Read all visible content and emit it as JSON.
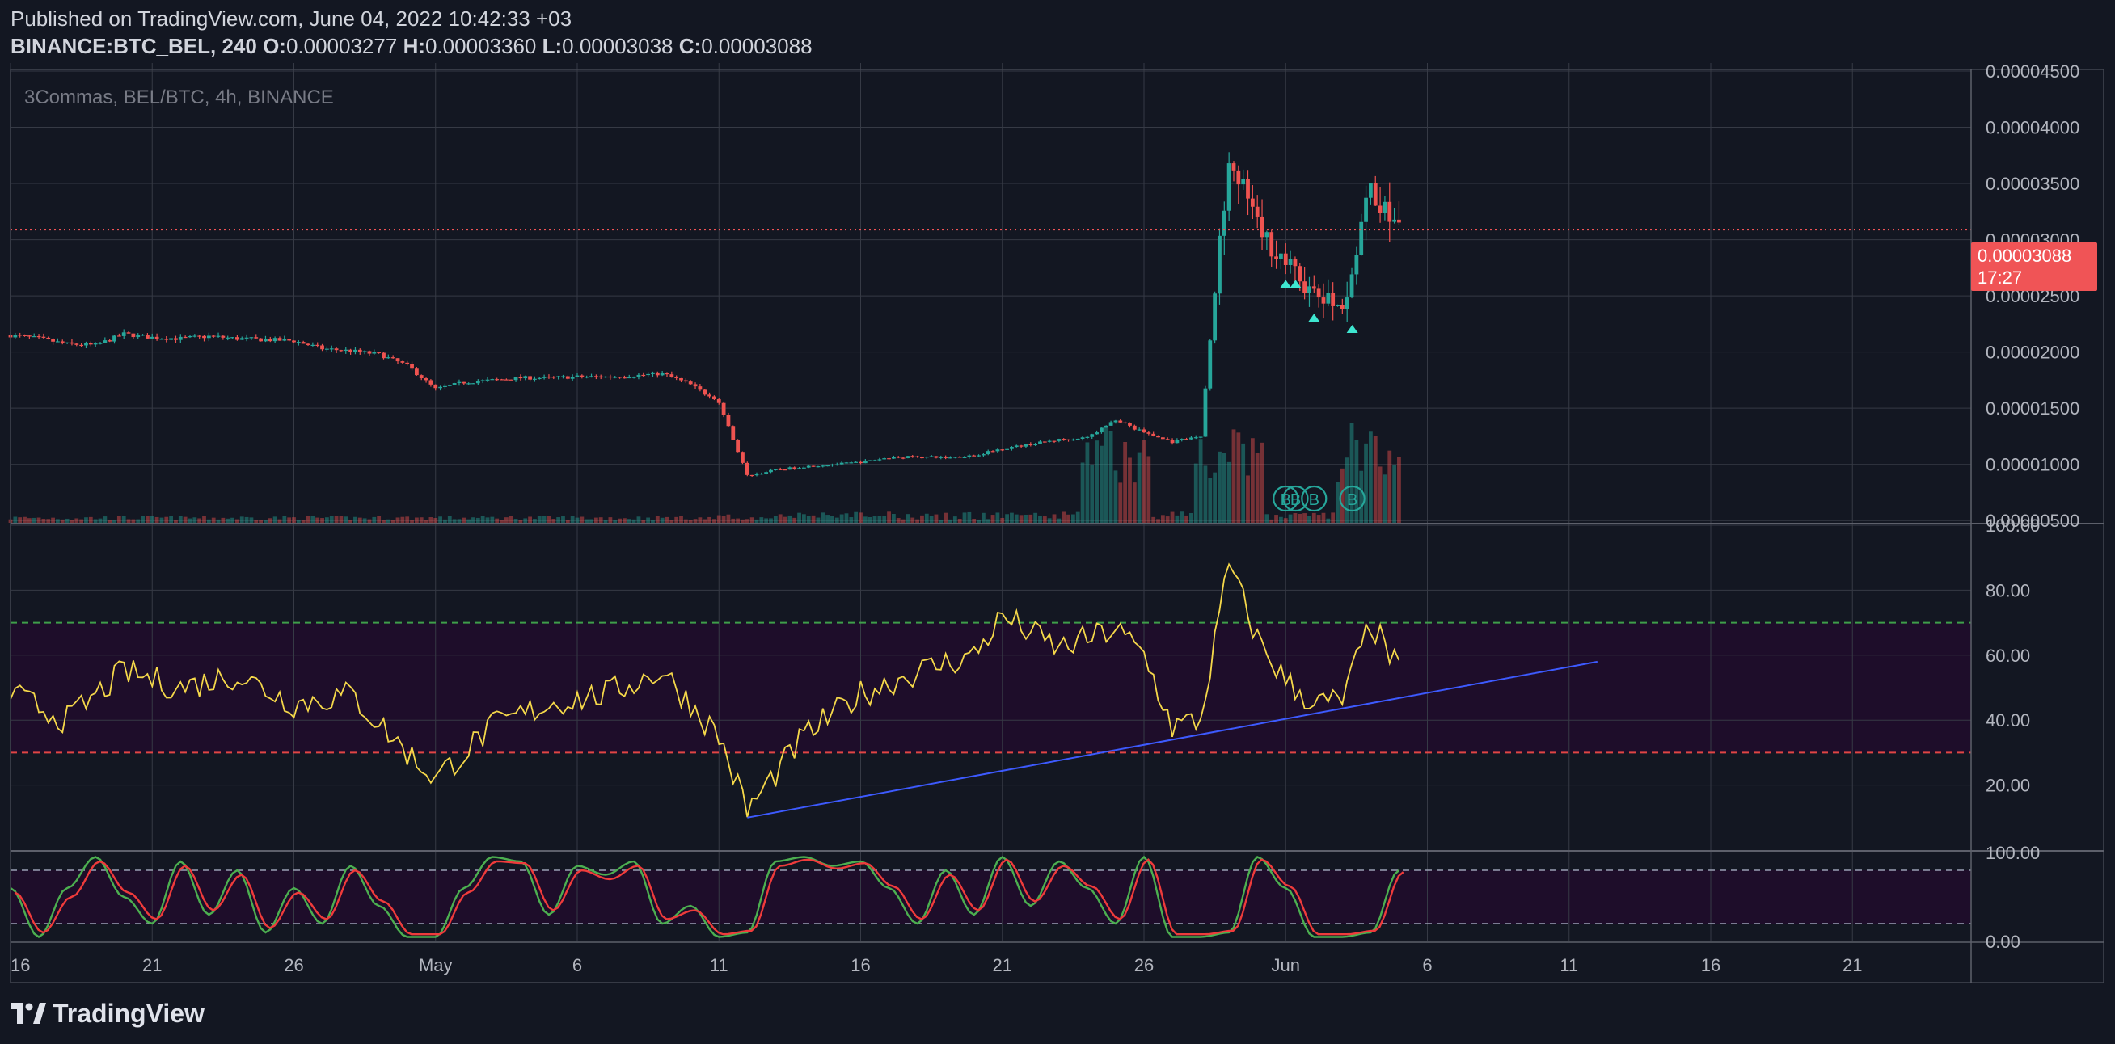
{
  "header": {
    "published": "Published on TradingView.com, June 04, 2022 10:42:33 +03",
    "symbol": "BINANCE:BTC_BEL, 240",
    "o_label": "O:",
    "o_value": "0.00003277",
    "h_label": "H:",
    "h_value": "0.00003360",
    "l_label": "L:",
    "l_value": "0.00003038",
    "c_label": "C:",
    "c_value": "0.00003088"
  },
  "watermark": "3Commas, BEL/BTC, 4h, BINANCE",
  "last_price": {
    "value": "0.00003088",
    "countdown": "17:27"
  },
  "logo_text": "TradingView",
  "colors": {
    "background": "#131722",
    "grid": "#363a45",
    "up": "#26a69a",
    "down": "#ef5350",
    "rsi": "#f5d84a",
    "trend": "#3d5afe",
    "stoch_k": "#4caf50",
    "stoch_d": "#ef3b3b",
    "band": "#1e0d2a",
    "ob": "#3f9e4a",
    "os": "#e04545"
  },
  "chart_data": [
    {
      "type": "candlestick",
      "title": "BEL/BTC 4h",
      "y_axis": {
        "ticks": [
          "0.00004500",
          "0.00004000",
          "0.00003500",
          "0.00003000",
          "0.00002500",
          "0.00002000",
          "0.00001500",
          "0.00001000",
          "0.00000500"
        ],
        "ylim": [
          4.8e-06,
          4.5e-05
        ]
      },
      "x_axis": {
        "ticks": [
          "16",
          "21",
          "26",
          "May",
          "6",
          "11",
          "16",
          "21",
          "26",
          "Jun",
          "6",
          "11",
          "16",
          "21"
        ]
      },
      "close_path": [
        [
          "2022-04-16",
          2.15e-05
        ],
        [
          "2022-04-17",
          2.12e-05
        ],
        [
          "2022-04-18",
          2.07e-05
        ],
        [
          "2022-04-19",
          2.06e-05
        ],
        [
          "2022-04-20",
          2.16e-05
        ],
        [
          "2022-04-21",
          2.13e-05
        ],
        [
          "2022-04-22",
          2.12e-05
        ],
        [
          "2022-04-23",
          2.14e-05
        ],
        [
          "2022-04-24",
          2.12e-05
        ],
        [
          "2022-04-25",
          2.11e-05
        ],
        [
          "2022-04-26",
          2.1e-05
        ],
        [
          "2022-04-27",
          2.03e-05
        ],
        [
          "2022-04-28",
          2.01e-05
        ],
        [
          "2022-04-29",
          1.98e-05
        ],
        [
          "2022-04-30",
          1.88e-05
        ],
        [
          "2022-05-01",
          1.67e-05
        ],
        [
          "2022-05-02",
          1.73e-05
        ],
        [
          "2022-05-03",
          1.75e-05
        ],
        [
          "2022-05-04",
          1.77e-05
        ],
        [
          "2022-05-05",
          1.77e-05
        ],
        [
          "2022-05-06",
          1.78e-05
        ],
        [
          "2022-05-07",
          1.78e-05
        ],
        [
          "2022-05-08",
          1.79e-05
        ],
        [
          "2022-05-09",
          1.81e-05
        ],
        [
          "2022-05-10",
          1.71e-05
        ],
        [
          "2022-05-11",
          1.55e-05
        ],
        [
          "2022-05-12",
          9e-06
        ],
        [
          "2022-05-13",
          9.5e-06
        ],
        [
          "2022-05-14",
          9.8e-06
        ],
        [
          "2022-05-15",
          1e-05
        ],
        [
          "2022-05-16",
          1.02e-05
        ],
        [
          "2022-05-17",
          1.06e-05
        ],
        [
          "2022-05-18",
          1.07e-05
        ],
        [
          "2022-05-19",
          1.06e-05
        ],
        [
          "2022-05-20",
          1.08e-05
        ],
        [
          "2022-05-21",
          1.14e-05
        ],
        [
          "2022-05-22",
          1.18e-05
        ],
        [
          "2022-05-23",
          1.22e-05
        ],
        [
          "2022-05-24",
          1.24e-05
        ],
        [
          "2022-05-25",
          1.4e-05
        ],
        [
          "2022-05-26",
          1.28e-05
        ],
        [
          "2022-05-27",
          1.2e-05
        ],
        [
          "2022-05-28",
          1.25e-05
        ],
        [
          "2022-05-29",
          3.8e-05
        ],
        [
          "2022-05-30",
          3.1e-05
        ],
        [
          "2022-05-31",
          2.8e-05
        ],
        [
          "2022-06-01",
          2.5e-05
        ],
        [
          "2022-06-02",
          2.4e-05
        ],
        [
          "2022-06-03",
          3.45e-05
        ],
        [
          "2022-06-04",
          3.088e-05
        ]
      ],
      "volume": {
        "scale_note": "relative",
        "spike_dates": [
          "2022-05-25",
          "2022-05-29",
          "2022-06-03"
        ]
      },
      "signals": [
        {
          "type": "buy",
          "label": "B",
          "date": "2022-05-31"
        },
        {
          "type": "buy",
          "label": "B",
          "date": "2022-05-31"
        },
        {
          "type": "buy",
          "label": "B",
          "date": "2022-06-01"
        },
        {
          "type": "buy",
          "label": "B",
          "date": "2022-06-02"
        }
      ]
    },
    {
      "type": "line",
      "title": "RSI",
      "y_axis": {
        "ticks": [
          "100.00",
          "80.00",
          "60.00",
          "40.00",
          "20.00"
        ],
        "ylim": [
          0,
          100
        ]
      },
      "levels": {
        "overbought": 70,
        "oversold": 30
      },
      "x": [
        "2022-04-16",
        "2022-04-18",
        "2022-04-20",
        "2022-04-22",
        "2022-04-24",
        "2022-04-26",
        "2022-04-28",
        "2022-04-30",
        "2022-05-01",
        "2022-05-03",
        "2022-05-05",
        "2022-05-07",
        "2022-05-09",
        "2022-05-11",
        "2022-05-12",
        "2022-05-14",
        "2022-05-16",
        "2022-05-18",
        "2022-05-20",
        "2022-05-21",
        "2022-05-23",
        "2022-05-25",
        "2022-05-26",
        "2022-05-27",
        "2022-05-28",
        "2022-05-29",
        "2022-05-30",
        "2022-05-31",
        "2022-06-01",
        "2022-06-02",
        "2022-06-03",
        "2022-06-04"
      ],
      "values": [
        48,
        40,
        55,
        50,
        54,
        45,
        48,
        30,
        22,
        38,
        45,
        48,
        55,
        35,
        12,
        35,
        48,
        55,
        60,
        72,
        62,
        68,
        60,
        38,
        40,
        88,
        65,
        52,
        45,
        46,
        70,
        55
      ],
      "trendline": {
        "start": [
          "2022-05-12",
          10
        ],
        "end": [
          "2022-06-11",
          58
        ]
      }
    },
    {
      "type": "line",
      "title": "Stoch RSI",
      "y_axis": {
        "ticks": [
          "100.00",
          "0.00"
        ],
        "ylim": [
          0,
          100
        ]
      },
      "levels": {
        "upper": 80,
        "lower": 20
      },
      "x": [
        "2022-04-16",
        "2022-04-17",
        "2022-04-18",
        "2022-04-19",
        "2022-04-20",
        "2022-04-21",
        "2022-04-22",
        "2022-04-23",
        "2022-04-24",
        "2022-04-25",
        "2022-04-26",
        "2022-04-27",
        "2022-04-28",
        "2022-04-29",
        "2022-04-30",
        "2022-05-01",
        "2022-05-02",
        "2022-05-03",
        "2022-05-04",
        "2022-05-05",
        "2022-05-06",
        "2022-05-07",
        "2022-05-08",
        "2022-05-09",
        "2022-05-10",
        "2022-05-11",
        "2022-05-12",
        "2022-05-13",
        "2022-05-14",
        "2022-05-15",
        "2022-05-16",
        "2022-05-17",
        "2022-05-18",
        "2022-05-19",
        "2022-05-20",
        "2022-05-21",
        "2022-05-22",
        "2022-05-23",
        "2022-05-24",
        "2022-05-25",
        "2022-05-26",
        "2022-05-27",
        "2022-05-28",
        "2022-05-29",
        "2022-05-30",
        "2022-05-31",
        "2022-06-01",
        "2022-06-02",
        "2022-06-03",
        "2022-06-04"
      ],
      "series": [
        {
          "values": [
            60,
            5,
            60,
            95,
            50,
            20,
            90,
            30,
            80,
            10,
            60,
            20,
            85,
            40,
            5,
            5,
            60,
            95,
            90,
            30,
            85,
            75,
            90,
            20,
            40,
            5,
            10,
            90,
            95,
            85,
            90,
            60,
            20,
            80,
            30,
            95,
            40,
            90,
            60,
            20,
            95,
            5,
            5,
            10,
            95,
            60,
            5,
            5,
            10,
            80
          ]
        },
        {
          "values": [
            55,
            10,
            50,
            90,
            55,
            25,
            85,
            35,
            75,
            15,
            55,
            25,
            80,
            45,
            8,
            8,
            55,
            90,
            88,
            35,
            80,
            70,
            85,
            25,
            35,
            8,
            12,
            85,
            92,
            82,
            88,
            62,
            25,
            75,
            35,
            92,
            45,
            85,
            62,
            25,
            92,
            8,
            8,
            12,
            92,
            62,
            8,
            8,
            12,
            78
          ]
        }
      ]
    }
  ]
}
